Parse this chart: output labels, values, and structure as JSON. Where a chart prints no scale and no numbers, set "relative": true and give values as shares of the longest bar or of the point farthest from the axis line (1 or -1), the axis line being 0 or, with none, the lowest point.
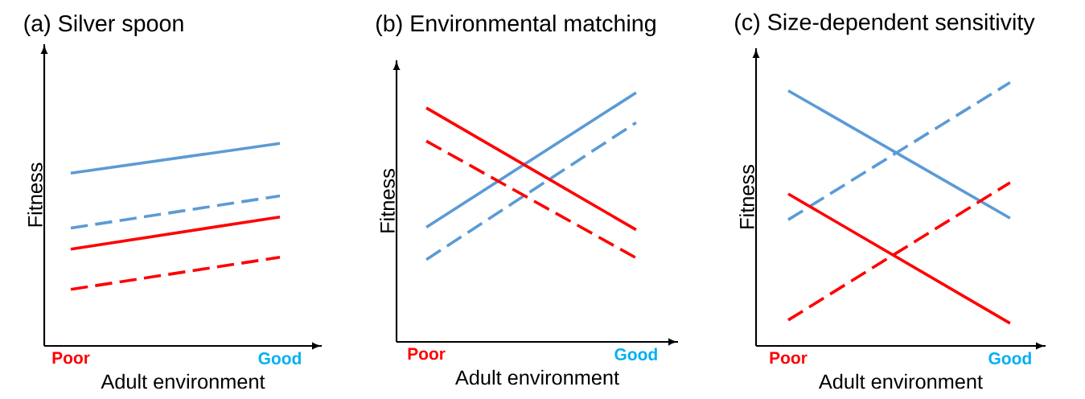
{
  "chart_data": [
    {
      "type": "line",
      "relative": true,
      "title": "(a) Silver spoon",
      "xlabel": "Adult environment",
      "ylabel": "Fitness",
      "categories": [
        "Poor",
        "Good"
      ],
      "series": [
        {
          "color": "#5b9bd5",
          "line_style": "solid",
          "values": [
            0.853,
            1
          ]
        },
        {
          "color": "#5b9bd5",
          "line_style": "dashed",
          "values": [
            0.582,
            0.741
          ]
        },
        {
          "color": "#ff0000",
          "line_style": "solid",
          "values": [
            0.478,
            0.637
          ]
        },
        {
          "color": "#ff0000",
          "line_style": "dashed",
          "values": [
            0.279,
            0.438
          ]
        }
      ]
    },
    {
      "type": "line",
      "relative": true,
      "title": "(b) Environmental matching",
      "xlabel": "Adult environment",
      "ylabel": "Fitness",
      "categories": [
        "Poor",
        "Good"
      ],
      "series": [
        {
          "color": "#5b9bd5",
          "line_style": "solid",
          "values": [
            0.46,
            1
          ]
        },
        {
          "color": "#5b9bd5",
          "line_style": "dashed",
          "values": [
            0.33,
            0.88
          ]
        },
        {
          "color": "#ff0000",
          "line_style": "solid",
          "values": [
            0.939,
            0.45
          ]
        },
        {
          "color": "#ff0000",
          "line_style": "dashed",
          "values": [
            0.806,
            0.337
          ]
        }
      ]
    },
    {
      "type": "line",
      "relative": true,
      "title": "(c) Size-dependent sensitivity",
      "xlabel": "Adult environment",
      "ylabel": "Fitness",
      "categories": [
        "Poor",
        "Good"
      ],
      "series": [
        {
          "color": "#5b9bd5",
          "line_style": "solid",
          "values": [
            0.969,
            0.485
          ]
        },
        {
          "color": "#5b9bd5",
          "line_style": "dashed",
          "values": [
            0.479,
            1
          ]
        },
        {
          "color": "#ff0000",
          "line_style": "solid",
          "values": [
            0.577,
            0.086
          ]
        },
        {
          "color": "#ff0000",
          "line_style": "dashed",
          "values": [
            0.098,
            0.62
          ]
        }
      ]
    }
  ]
}
